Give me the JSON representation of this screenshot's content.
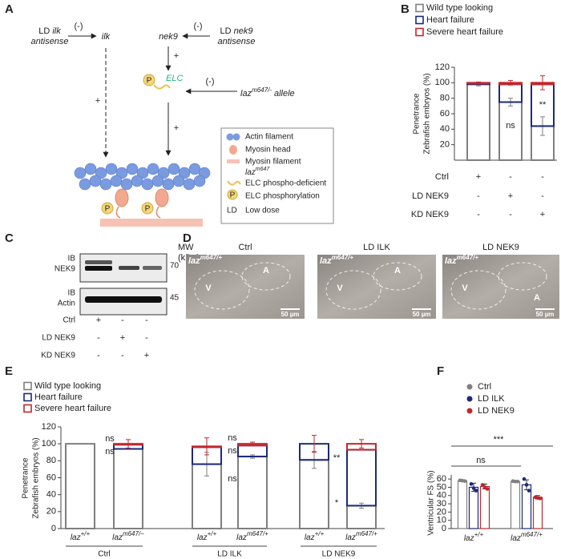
{
  "panel_labels": [
    "A",
    "B",
    "C",
    "D",
    "E",
    "F"
  ],
  "diagram": {
    "ilk_inhibitor": {
      "prefix": "LD",
      "gene": "ilk",
      "suffix": "antisense"
    },
    "nek9_inhibitor": {
      "prefix": "LD",
      "gene": "nek9",
      "suffix": "antisense"
    },
    "minus_signs": [
      "(-)",
      "(-)",
      "(-)"
    ],
    "plus_signs": [
      "+",
      "+",
      "+"
    ],
    "ilk": "ilk",
    "nek9": "nek9",
    "elc": "ELC",
    "phospho": "P",
    "allele": {
      "base": "laz",
      "sup": "m647/-",
      "suffix": "allele"
    },
    "legend": [
      {
        "label": "Actin filament"
      },
      {
        "label": "Myosin head"
      },
      {
        "label": "Myosin filament"
      },
      {
        "base": "laz",
        "sup": "m647",
        "label": "ELC phospho-deficient"
      },
      {
        "label": "ELC phosphorylation"
      },
      {
        "symbol": "LD",
        "label": "Low dose"
      }
    ]
  },
  "chart_data": [
    {
      "type": "stacked_bar",
      "ylabel_lines": [
        "Penetrance",
        "Zebrafish embryos (%)"
      ],
      "ylim": [
        0,
        120
      ],
      "yticks": [
        20,
        40,
        60,
        80,
        100,
        120
      ],
      "series": [
        {
          "name": "Wild type looking",
          "color": "#7f7f7f",
          "values": [
            98,
            75,
            44
          ],
          "errors": [
            2,
            5,
            12
          ]
        },
        {
          "name": "Heart failure",
          "color": "#1c2a78",
          "values": [
            1,
            23,
            54
          ],
          "errors": [
            null,
            null,
            null
          ]
        },
        {
          "name": "Severe heart failure",
          "color": "#c1272d",
          "values": [
            1,
            2,
            2
          ],
          "errors": [
            1,
            3,
            9
          ]
        }
      ],
      "conditions": [
        {
          "name": "Ctrl",
          "marks": [
            "+",
            "-",
            "-"
          ]
        },
        {
          "name": "LD NEK9",
          "marks": [
            "-",
            "+",
            "-"
          ]
        },
        {
          "name": "KD NEK9",
          "marks": [
            "-",
            "-",
            "+"
          ]
        }
      ],
      "annotations": [
        "ns",
        "**"
      ]
    },
    {
      "type": "stacked_bar",
      "ylabel_lines": [
        "Penetrance",
        "Zebrafish embryos (%)"
      ],
      "ylim": [
        0,
        120
      ],
      "yticks": [
        0,
        20,
        40,
        60,
        80,
        100,
        120
      ],
      "categories": [
        {
          "base": "laz",
          "sup": "+/+"
        },
        {
          "base": "laz",
          "sup": "m647/−"
        },
        {
          "base": "laz",
          "sup": "+/+"
        },
        {
          "base": "laz",
          "sup": "m647/+"
        },
        {
          "base": "laz",
          "sup": "+/+"
        },
        {
          "base": "laz",
          "sup": "m647/+"
        }
      ],
      "groups": [
        "Ctrl",
        "LD ILK",
        "LD NEK9"
      ],
      "series": [
        {
          "name": "Wild type looking",
          "color": "#7f7f7f",
          "values": [
            100,
            94,
            76,
            85,
            81,
            27
          ],
          "errors": [
            null,
            null,
            14,
            2,
            10,
            3
          ]
        },
        {
          "name": "Heart failure",
          "color": "#1c2a78",
          "values": [
            0,
            5,
            20,
            13,
            19,
            66
          ],
          "errors": [
            null,
            null,
            null,
            null,
            null,
            null
          ]
        },
        {
          "name": "Severe heart failure",
          "color": "#c1272d",
          "values": [
            0,
            1,
            1,
            2,
            0,
            7
          ],
          "errors": [
            null,
            5,
            10,
            2,
            10,
            5
          ]
        }
      ],
      "annotations": [
        "ns",
        "ns",
        "ns",
        "ns",
        "ns",
        "**",
        "*"
      ]
    },
    {
      "type": "bar_points",
      "ylabel": "Ventricular FS (%)",
      "ylim": [
        0,
        65
      ],
      "yticks": [
        0,
        10,
        20,
        30,
        40,
        50,
        60
      ],
      "categories": [
        {
          "base": "laz",
          "sup": "+/+"
        },
        {
          "base": "laz",
          "sup": "m647/+"
        }
      ],
      "series": [
        {
          "name": "Ctrl",
          "color": "#808080",
          "values": [
            58,
            57
          ],
          "errors": [
            1,
            1
          ],
          "points": [
            [
              58.5,
              58,
              57.5
            ],
            [
              57.5,
              57,
              57
            ]
          ]
        },
        {
          "name": "LD ILK",
          "color": "#1c2a78",
          "values": [
            50,
            53
          ],
          "errors": [
            5,
            6
          ],
          "points": [
            [
              54,
              49,
              46
            ],
            [
              60,
              53,
              46
            ]
          ]
        },
        {
          "name": "LD NEK9",
          "color": "#c1272d",
          "values": [
            51,
            38
          ],
          "errors": [
            3,
            2
          ],
          "points": [
            [
              53,
              50,
              48
            ],
            [
              38,
              37,
              36.5
            ]
          ]
        }
      ],
      "annotations": [
        "***",
        "ns"
      ]
    }
  ],
  "blot": {
    "mw_label": [
      "MW",
      "(kDa)"
    ],
    "markers": [
      70,
      45
    ],
    "blots": [
      [
        "IB",
        "NEK9"
      ],
      [
        "IB",
        "Actin"
      ]
    ],
    "rows": [
      {
        "name": "Ctrl",
        "marks": [
          "+",
          "-",
          "-"
        ]
      },
      {
        "name": "LD NEK9",
        "marks": [
          "-",
          "+",
          "-"
        ]
      },
      {
        "name": "KD NEK9",
        "marks": [
          "-",
          "-",
          "+"
        ]
      }
    ]
  },
  "images": {
    "panels": [
      {
        "title": "Ctrl"
      },
      {
        "title": "LD ILK"
      },
      {
        "title": "LD NEK9"
      }
    ],
    "genotype": {
      "base": "laz",
      "sup": "m647/+"
    },
    "chambers": [
      "V",
      "A"
    ],
    "scale_bar": "50 µm"
  }
}
